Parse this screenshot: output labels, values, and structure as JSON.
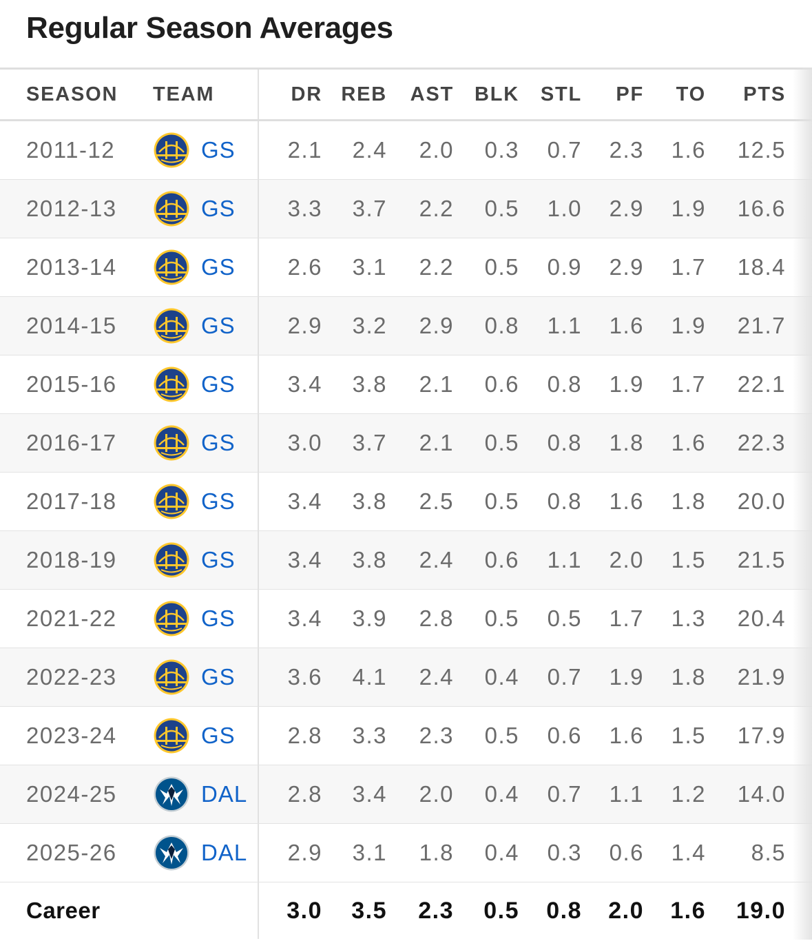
{
  "title": "Regular Season Averages",
  "headers": {
    "season": "SEASON",
    "team": "TEAM",
    "dr": "DR",
    "reb": "REB",
    "ast": "AST",
    "blk": "BLK",
    "stl": "STL",
    "pf": "PF",
    "to": "TO",
    "pts": "PTS"
  },
  "rows": [
    {
      "season": "2011-12",
      "team": "GS",
      "logo": "warriors-logo-icon",
      "dr": "2.1",
      "reb": "2.4",
      "ast": "2.0",
      "blk": "0.3",
      "stl": "0.7",
      "pf": "2.3",
      "to": "1.6",
      "pts": "12.5"
    },
    {
      "season": "2012-13",
      "team": "GS",
      "logo": "warriors-logo-icon",
      "dr": "3.3",
      "reb": "3.7",
      "ast": "2.2",
      "blk": "0.5",
      "stl": "1.0",
      "pf": "2.9",
      "to": "1.9",
      "pts": "16.6"
    },
    {
      "season": "2013-14",
      "team": "GS",
      "logo": "warriors-logo-icon",
      "dr": "2.6",
      "reb": "3.1",
      "ast": "2.2",
      "blk": "0.5",
      "stl": "0.9",
      "pf": "2.9",
      "to": "1.7",
      "pts": "18.4"
    },
    {
      "season": "2014-15",
      "team": "GS",
      "logo": "warriors-logo-icon",
      "dr": "2.9",
      "reb": "3.2",
      "ast": "2.9",
      "blk": "0.8",
      "stl": "1.1",
      "pf": "1.6",
      "to": "1.9",
      "pts": "21.7"
    },
    {
      "season": "2015-16",
      "team": "GS",
      "logo": "warriors-logo-icon",
      "dr": "3.4",
      "reb": "3.8",
      "ast": "2.1",
      "blk": "0.6",
      "stl": "0.8",
      "pf": "1.9",
      "to": "1.7",
      "pts": "22.1"
    },
    {
      "season": "2016-17",
      "team": "GS",
      "logo": "warriors-logo-icon",
      "dr": "3.0",
      "reb": "3.7",
      "ast": "2.1",
      "blk": "0.5",
      "stl": "0.8",
      "pf": "1.8",
      "to": "1.6",
      "pts": "22.3"
    },
    {
      "season": "2017-18",
      "team": "GS",
      "logo": "warriors-logo-icon",
      "dr": "3.4",
      "reb": "3.8",
      "ast": "2.5",
      "blk": "0.5",
      "stl": "0.8",
      "pf": "1.6",
      "to": "1.8",
      "pts": "20.0"
    },
    {
      "season": "2018-19",
      "team": "GS",
      "logo": "warriors-logo-icon",
      "dr": "3.4",
      "reb": "3.8",
      "ast": "2.4",
      "blk": "0.6",
      "stl": "1.1",
      "pf": "2.0",
      "to": "1.5",
      "pts": "21.5"
    },
    {
      "season": "2021-22",
      "team": "GS",
      "logo": "warriors-logo-icon",
      "dr": "3.4",
      "reb": "3.9",
      "ast": "2.8",
      "blk": "0.5",
      "stl": "0.5",
      "pf": "1.7",
      "to": "1.3",
      "pts": "20.4"
    },
    {
      "season": "2022-23",
      "team": "GS",
      "logo": "warriors-logo-icon",
      "dr": "3.6",
      "reb": "4.1",
      "ast": "2.4",
      "blk": "0.4",
      "stl": "0.7",
      "pf": "1.9",
      "to": "1.8",
      "pts": "21.9"
    },
    {
      "season": "2023-24",
      "team": "GS",
      "logo": "warriors-logo-icon",
      "dr": "2.8",
      "reb": "3.3",
      "ast": "2.3",
      "blk": "0.5",
      "stl": "0.6",
      "pf": "1.6",
      "to": "1.5",
      "pts": "17.9"
    },
    {
      "season": "2024-25",
      "team": "DAL",
      "logo": "mavericks-logo-icon",
      "dr": "2.8",
      "reb": "3.4",
      "ast": "2.0",
      "blk": "0.4",
      "stl": "0.7",
      "pf": "1.1",
      "to": "1.2",
      "pts": "14.0"
    },
    {
      "season": "2025-26",
      "team": "DAL",
      "logo": "mavericks-logo-icon",
      "dr": "2.9",
      "reb": "3.1",
      "ast": "1.8",
      "blk": "0.4",
      "stl": "0.3",
      "pf": "0.6",
      "to": "1.4",
      "pts": "8.5"
    }
  ],
  "career": {
    "label": "Career",
    "dr": "3.0",
    "reb": "3.5",
    "ast": "2.3",
    "blk": "0.5",
    "stl": "0.8",
    "pf": "2.0",
    "to": "1.6",
    "pts": "19.0"
  },
  "colors": {
    "team_link": "#1163c9",
    "warriors_blue": "#1d428a",
    "warriors_gold": "#ffc72c",
    "mavs_blue": "#00538c",
    "mavs_navy": "#0b1f3a"
  }
}
